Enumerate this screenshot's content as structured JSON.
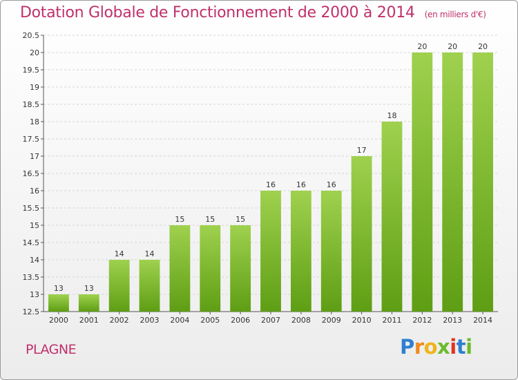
{
  "chart_data": {
    "type": "bar",
    "title": "Dotation Globale de Fonctionnement de 2000 à 2014",
    "subtitle": "(en milliers d'€)",
    "categories": [
      "2000",
      "2001",
      "2002",
      "2003",
      "2004",
      "2005",
      "2006",
      "2007",
      "2008",
      "2009",
      "2010",
      "2011",
      "2012",
      "2013",
      "2014"
    ],
    "values": [
      13,
      13,
      14,
      14,
      15,
      15,
      15,
      16,
      16,
      16,
      17,
      18,
      20,
      20,
      20
    ],
    "ylim": [
      12.5,
      20.5
    ],
    "yticks": [
      12.5,
      13,
      13.5,
      14,
      14.5,
      15,
      15.5,
      16,
      16.5,
      17,
      17.5,
      18,
      18.5,
      19,
      19.5,
      20,
      20.5
    ],
    "xlabel": "",
    "ylabel": "",
    "grid": true,
    "bar_color": "#7dbd2e"
  },
  "footer": {
    "commune": "PLAGNE",
    "logo_text": "Proxiti"
  }
}
